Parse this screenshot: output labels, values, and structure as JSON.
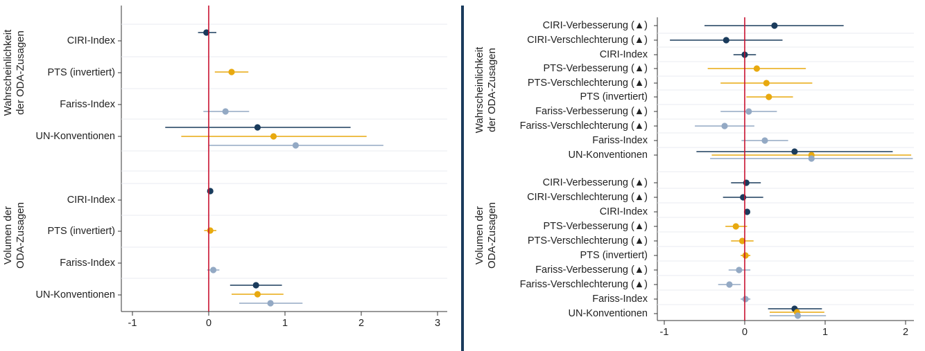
{
  "colors": {
    "dark_blue": "#1a3b5c",
    "orange": "#e8a90f",
    "light_blue": "#93a9c4",
    "zero_line": "#c8102e",
    "divider": "#1a3b5c",
    "grid": "#e8ebf0"
  },
  "chart_data": [
    {
      "type": "scatter",
      "subtype": "coefficient-plot",
      "x_ticks": [
        "-1",
        "0",
        "1",
        "2",
        "3"
      ],
      "xlim": [
        -1.1,
        3.1
      ],
      "reference_line_x": 0,
      "groups": [
        {
          "title": "Wahrscheinlichkeit der ODA-Zusagen",
          "title_lines": [
            "Wahrscheinlichkeit",
            "der ODA-Zusagen"
          ],
          "rows": [
            {
              "label": "CIRI-Index",
              "points": [
                {
                  "color": "dark_blue",
                  "est": -0.03,
                  "lo": -0.14,
                  "hi": 0.1
                }
              ]
            },
            {
              "label": "PTS (invertiert)",
              "points": [
                {
                  "color": "orange",
                  "est": 0.3,
                  "lo": 0.08,
                  "hi": 0.52
                }
              ]
            },
            {
              "label": "Fariss-Index",
              "points": [
                {
                  "color": "light_blue",
                  "est": 0.22,
                  "lo": -0.07,
                  "hi": 0.53
                }
              ]
            },
            {
              "label": "UN-Konventionen",
              "points": [
                {
                  "color": "dark_blue",
                  "est": 0.64,
                  "lo": -0.57,
                  "hi": 1.86
                },
                {
                  "color": "orange",
                  "est": 0.85,
                  "lo": -0.36,
                  "hi": 2.07
                },
                {
                  "color": "light_blue",
                  "est": 1.14,
                  "lo": 0.0,
                  "hi": 2.29
                }
              ]
            }
          ]
        },
        {
          "title": "Volumen der ODA-Zusagen",
          "title_lines": [
            "Volumen der",
            "ODA-Zusagen"
          ],
          "rows": [
            {
              "label": "CIRI-Index",
              "points": [
                {
                  "color": "dark_blue",
                  "est": 0.02,
                  "lo": 0.02,
                  "hi": 0.02
                }
              ]
            },
            {
              "label": "PTS (invertiert)",
              "points": [
                {
                  "color": "orange",
                  "est": 0.02,
                  "lo": -0.06,
                  "hi": 0.1
                }
              ]
            },
            {
              "label": "Fariss-Index",
              "points": [
                {
                  "color": "light_blue",
                  "est": 0.06,
                  "lo": -0.02,
                  "hi": 0.14
                }
              ]
            },
            {
              "label": "UN-Konventionen",
              "points": [
                {
                  "color": "dark_blue",
                  "est": 0.62,
                  "lo": 0.28,
                  "hi": 0.96
                },
                {
                  "color": "orange",
                  "est": 0.64,
                  "lo": 0.3,
                  "hi": 0.98
                },
                {
                  "color": "light_blue",
                  "est": 0.81,
                  "lo": 0.4,
                  "hi": 1.23
                }
              ]
            }
          ]
        }
      ]
    },
    {
      "type": "scatter",
      "subtype": "coefficient-plot",
      "x_ticks": [
        "-1",
        "0",
        "1",
        "2"
      ],
      "xlim": [
        -1.1,
        2.2
      ],
      "reference_line_x": 0,
      "groups": [
        {
          "title": "Wahrscheinlichkeit der ODA-Zusagen",
          "title_lines": [
            "Wahrscheinlichkeit",
            "der ODA-Zusagen"
          ],
          "rows": [
            {
              "label": "CIRI-Verbesserung (▲)",
              "points": [
                {
                  "color": "dark_blue",
                  "est": 0.37,
                  "lo": -0.5,
                  "hi": 1.23
                }
              ]
            },
            {
              "label": "CIRI-Verschlechterung (▲)",
              "points": [
                {
                  "color": "dark_blue",
                  "est": -0.23,
                  "lo": -0.93,
                  "hi": 0.47
                }
              ]
            },
            {
              "label": "CIRI-Index",
              "points": [
                {
                  "color": "dark_blue",
                  "est": 0.0,
                  "lo": -0.14,
                  "hi": 0.14
                }
              ]
            },
            {
              "label": "PTS-Verbesserung (▲)",
              "points": [
                {
                  "color": "orange",
                  "est": 0.15,
                  "lo": -0.46,
                  "hi": 0.76
                }
              ]
            },
            {
              "label": "PTS-Verschlechterung (▲)",
              "points": [
                {
                  "color": "orange",
                  "est": 0.27,
                  "lo": -0.3,
                  "hi": 0.84
                }
              ]
            },
            {
              "label": "PTS (invertiert)",
              "points": [
                {
                  "color": "orange",
                  "est": 0.3,
                  "lo": 0.02,
                  "hi": 0.6
                }
              ]
            },
            {
              "label": "Fariss-Verbesserung (▲)",
              "points": [
                {
                  "color": "light_blue",
                  "est": 0.05,
                  "lo": -0.3,
                  "hi": 0.4
                }
              ]
            },
            {
              "label": "Fariss-Verschlechterung (▲)",
              "points": [
                {
                  "color": "light_blue",
                  "est": -0.25,
                  "lo": -0.62,
                  "hi": 0.12
                }
              ]
            },
            {
              "label": "Fariss-Index",
              "points": [
                {
                  "color": "light_blue",
                  "est": 0.25,
                  "lo": -0.04,
                  "hi": 0.54
                }
              ]
            },
            {
              "label": "UN-Konventionen",
              "points": [
                {
                  "color": "dark_blue",
                  "est": 0.62,
                  "lo": -0.6,
                  "hi": 1.84
                },
                {
                  "color": "orange",
                  "est": 0.83,
                  "lo": -0.41,
                  "hi": 2.07
                },
                {
                  "color": "light_blue",
                  "est": 0.83,
                  "lo": -0.43,
                  "hi": 2.09
                }
              ]
            }
          ]
        },
        {
          "title": "Volumen der ODA-Zusagen",
          "title_lines": [
            "Volumen der",
            "ODA-Zusagen"
          ],
          "rows": [
            {
              "label": "CIRI-Verbesserung (▲)",
              "points": [
                {
                  "color": "dark_blue",
                  "est": 0.02,
                  "lo": -0.17,
                  "hi": 0.2
                }
              ]
            },
            {
              "label": "CIRI-Verschlechterung (▲)",
              "points": [
                {
                  "color": "dark_blue",
                  "est": -0.02,
                  "lo": -0.27,
                  "hi": 0.23
                }
              ]
            },
            {
              "label": "CIRI-Index",
              "points": [
                {
                  "color": "dark_blue",
                  "est": 0.03,
                  "lo": 0.03,
                  "hi": 0.03
                }
              ]
            },
            {
              "label": "PTS-Verbesserung (▲)",
              "points": [
                {
                  "color": "orange",
                  "est": -0.11,
                  "lo": -0.24,
                  "hi": 0.03
                }
              ]
            },
            {
              "label": "PTS-Verschlechterung (▲)",
              "points": [
                {
                  "color": "orange",
                  "est": -0.03,
                  "lo": -0.17,
                  "hi": 0.11
                }
              ]
            },
            {
              "label": "PTS (invertiert)",
              "points": [
                {
                  "color": "orange",
                  "est": 0.01,
                  "lo": -0.05,
                  "hi": 0.07
                }
              ]
            },
            {
              "label": "Fariss-Verbesserung (▲)",
              "points": [
                {
                  "color": "light_blue",
                  "est": -0.07,
                  "lo": -0.2,
                  "hi": 0.07
                }
              ]
            },
            {
              "label": "Fariss-Verschlechterung (▲)",
              "points": [
                {
                  "color": "light_blue",
                  "est": -0.19,
                  "lo": -0.33,
                  "hi": -0.05
                }
              ]
            },
            {
              "label": "Fariss-Index",
              "points": [
                {
                  "color": "light_blue",
                  "est": 0.01,
                  "lo": -0.05,
                  "hi": 0.07
                }
              ]
            },
            {
              "label": "UN-Konventionen",
              "points": [
                {
                  "color": "dark_blue",
                  "est": 0.62,
                  "lo": 0.29,
                  "hi": 0.96
                },
                {
                  "color": "orange",
                  "est": 0.65,
                  "lo": 0.31,
                  "hi": 0.99
                },
                {
                  "color": "light_blue",
                  "est": 0.66,
                  "lo": 0.31,
                  "hi": 1.01
                }
              ]
            }
          ]
        }
      ]
    }
  ]
}
